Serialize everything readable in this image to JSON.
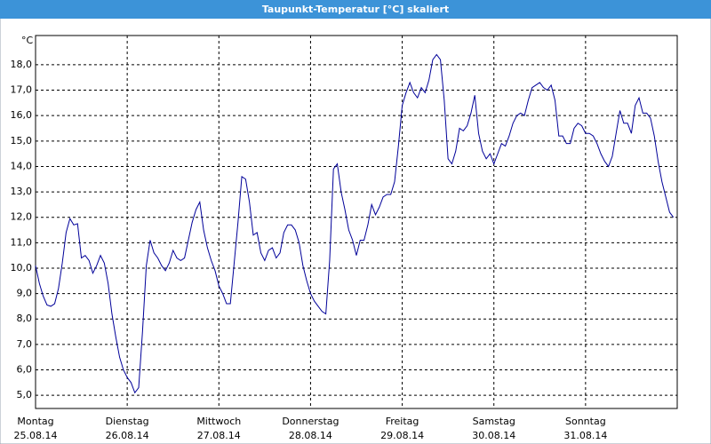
{
  "chart_data": {
    "type": "line",
    "title": "Taupunkt-Temperatur [°C] skaliert",
    "y_unit": "°C",
    "color": "#000099",
    "grid": true,
    "xlim": [
      0,
      168
    ],
    "ylim": [
      4.48,
      19.15
    ],
    "xticks": [
      {
        "value": 0,
        "label": "Montag",
        "date": "25.08.14"
      },
      {
        "value": 24,
        "label": "Dienstag",
        "date": "26.08.14"
      },
      {
        "value": 48,
        "label": "Mittwoch",
        "date": "27.08.14"
      },
      {
        "value": 72,
        "label": "Donnerstag",
        "date": "28.08.14"
      },
      {
        "value": 96,
        "label": "Freitag",
        "date": "29.08.14"
      },
      {
        "value": 120,
        "label": "Samstag",
        "date": "30.08.14"
      },
      {
        "value": 144,
        "label": "Sonntag",
        "date": "31.08.14"
      }
    ],
    "yticks": [
      {
        "value": 5,
        "label": "5,0"
      },
      {
        "value": 6,
        "label": "6,0"
      },
      {
        "value": 7,
        "label": "7,0"
      },
      {
        "value": 8,
        "label": "8,0"
      },
      {
        "value": 9,
        "label": "9,0"
      },
      {
        "value": 10,
        "label": "10,0"
      },
      {
        "value": 11,
        "label": "11,0"
      },
      {
        "value": 12,
        "label": "12,0"
      },
      {
        "value": 13,
        "label": "13,0"
      },
      {
        "value": 14,
        "label": "14,0"
      },
      {
        "value": 15,
        "label": "15,0"
      },
      {
        "value": 16,
        "label": "16,0"
      },
      {
        "value": 17,
        "label": "17,0"
      },
      {
        "value": 18,
        "label": "18,0"
      }
    ],
    "x": [
      0,
      1,
      2,
      3,
      4,
      5,
      6,
      7,
      8,
      9,
      10,
      11,
      12,
      13,
      14,
      15,
      16,
      17,
      18,
      19,
      20,
      21,
      22,
      23,
      24,
      25,
      26,
      27,
      28,
      29,
      30,
      31,
      32,
      33,
      34,
      35,
      36,
      37,
      38,
      39,
      40,
      41,
      42,
      43,
      44,
      45,
      46,
      47,
      48,
      49,
      50,
      51,
      52,
      53,
      54,
      55,
      56,
      57,
      58,
      59,
      60,
      61,
      62,
      63,
      64,
      65,
      66,
      67,
      68,
      69,
      70,
      71,
      72,
      73,
      74,
      75,
      76,
      77,
      78,
      79,
      80,
      81,
      82,
      83,
      84,
      85,
      86,
      87,
      88,
      89,
      90,
      91,
      92,
      93,
      94,
      95,
      96,
      97,
      98,
      99,
      100,
      101,
      102,
      103,
      104,
      105,
      106,
      107,
      108,
      109,
      110,
      111,
      112,
      113,
      114,
      115,
      116,
      117,
      118,
      119,
      120,
      121,
      122,
      123,
      124,
      125,
      126,
      127,
      128,
      129,
      130,
      131,
      132,
      133,
      134,
      135,
      136,
      137,
      138,
      139,
      140,
      141,
      142,
      143,
      144,
      145,
      146,
      147,
      148,
      149,
      150,
      151,
      152,
      153,
      154,
      155,
      156,
      157,
      158,
      159,
      160,
      161,
      162,
      163,
      164,
      165,
      166,
      167
    ],
    "values": [
      10.1,
      9.4,
      8.9,
      8.55,
      8.5,
      8.6,
      9.2,
      10.2,
      11.4,
      11.95,
      11.7,
      11.75,
      10.4,
      10.5,
      10.3,
      9.8,
      10.1,
      10.5,
      10.2,
      9.4,
      8.2,
      7.3,
      6.5,
      6.0,
      5.7,
      5.5,
      5.1,
      5.3,
      7.5,
      10.1,
      11.1,
      10.6,
      10.4,
      10.1,
      9.9,
      10.2,
      10.7,
      10.4,
      10.3,
      10.4,
      11.1,
      11.8,
      12.3,
      12.6,
      11.5,
      10.8,
      10.3,
      9.9,
      9.3,
      9.0,
      8.6,
      8.6,
      10.2,
      11.8,
      13.6,
      13.5,
      12.6,
      11.3,
      11.4,
      10.6,
      10.3,
      10.7,
      10.8,
      10.4,
      10.6,
      11.4,
      11.7,
      11.7,
      11.5,
      11.0,
      10.1,
      9.5,
      9.0,
      8.7,
      8.5,
      8.3,
      8.2,
      10.3,
      13.9,
      14.1,
      13.0,
      12.3,
      11.5,
      11.1,
      10.5,
      11.1,
      11.1,
      11.7,
      12.5,
      12.1,
      12.4,
      12.8,
      12.9,
      12.9,
      13.4,
      14.8,
      16.4,
      16.9,
      17.3,
      16.9,
      16.7,
      17.1,
      16.9,
      17.4,
      18.2,
      18.4,
      18.2,
      16.6,
      14.3,
      14.1,
      14.6,
      15.5,
      15.4,
      15.6,
      16.1,
      16.8,
      15.3,
      14.6,
      14.3,
      14.5,
      14.1,
      14.5,
      14.9,
      14.8,
      15.2,
      15.7,
      16.0,
      16.1,
      16.0,
      16.6,
      17.1,
      17.2,
      17.3,
      17.1,
      17.0,
      17.2,
      16.6,
      15.2,
      15.2,
      14.9,
      14.9,
      15.5,
      15.7,
      15.6,
      15.3,
      15.3,
      15.2,
      14.9,
      14.5,
      14.2,
      14.0,
      14.4,
      15.3,
      16.2,
      15.7,
      15.7,
      15.3,
      16.4,
      16.7,
      16.1,
      16.1,
      15.9,
      15.2,
      14.2,
      13.4,
      12.8,
      12.2,
      12.0
    ]
  }
}
